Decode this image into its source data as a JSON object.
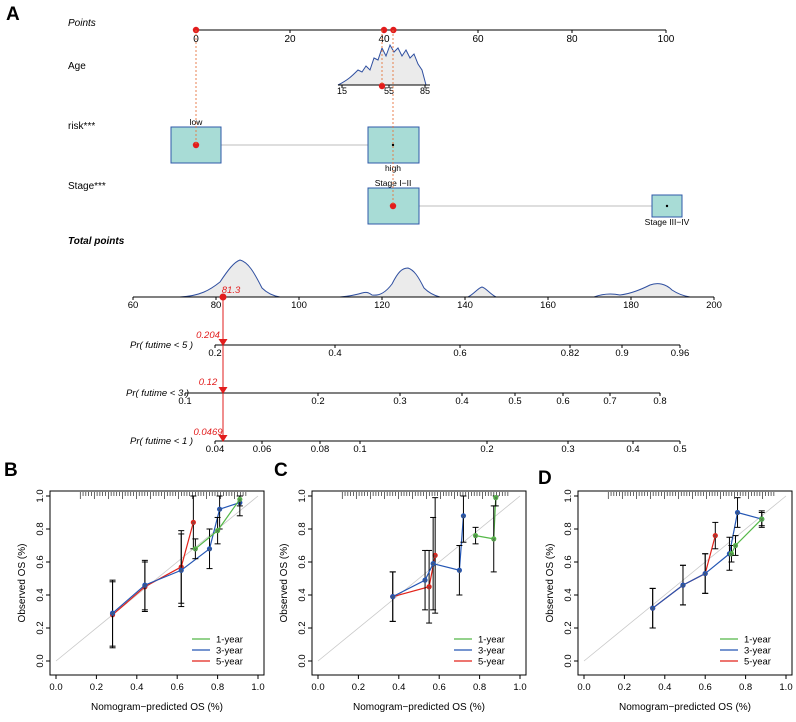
{
  "panel_letters": [
    "A",
    "B",
    "C",
    "D"
  ],
  "colors": {
    "box_fill": "#a8dcd6",
    "box_stroke": "#2f5aa8",
    "density_line": "#2f4fa0",
    "density_fill": "#ebebeb",
    "point_red": "#e21d1d",
    "guide": "#e6753e",
    "red_text": "#e21d1d",
    "one_year": "#55b848",
    "three_year": "#2456b4",
    "five_year": "#e2231a"
  },
  "nomogram": {
    "points_label": "Points",
    "points_axis": {
      "min": 0,
      "max": 100,
      "ticks": [
        0,
        20,
        40,
        60,
        80,
        100
      ],
      "selected": [
        0,
        40,
        42
      ]
    },
    "age": {
      "label": "Age",
      "ticks": [
        15,
        55,
        85
      ],
      "selected_value": 55,
      "points": 40
    },
    "risk": {
      "label": "risk***",
      "levels": [
        "low",
        "high"
      ],
      "selected": "low",
      "points": 0
    },
    "stage": {
      "label": "Stage***",
      "levels": [
        "Stage I−II",
        "Stage III−IV"
      ],
      "selected": "Stage I−II",
      "points": 42
    },
    "total_label": "Total points",
    "total_axis": {
      "min": 60,
      "max": 200,
      "ticks": [
        60,
        80,
        100,
        120,
        140,
        160,
        180,
        200
      ]
    },
    "total_value": "81.3",
    "probabilities": [
      {
        "label": "Pr( futime < 5 )",
        "value": "0.204",
        "ticks": [
          "0.2",
          "0.4",
          "0.6",
          "0.82",
          "0.9",
          "0.96"
        ]
      },
      {
        "label": "Pr( futime < 3 )",
        "value": "0.12",
        "ticks": [
          "0.1",
          "0.2",
          "0.3",
          "0.4",
          "0.5",
          "0.6",
          "0.7",
          "0.8"
        ]
      },
      {
        "label": "Pr( futime < 1 )",
        "value": "0.0469",
        "ticks": [
          "0.04",
          "0.06",
          "0.08",
          "0.1",
          "0.2",
          "0.3",
          "0.4",
          "0.5"
        ]
      }
    ]
  },
  "chart_data": [
    {
      "type": "line",
      "panel": "B",
      "title": "",
      "xlabel": "Nomogram−predicted OS (%)",
      "ylabel": "Observed OS (%)",
      "xlim": [
        0,
        1
      ],
      "ylim": [
        0,
        1
      ],
      "xticks": [
        "0.0",
        "0.2",
        "0.4",
        "0.6",
        "0.8",
        "1.0"
      ],
      "yticks": [
        "0.0",
        "0.2",
        "0.4",
        "0.6",
        "0.8",
        "1.0"
      ],
      "series": [
        {
          "name": "1-year",
          "x": [
            0.69,
            0.8,
            0.91
          ],
          "y": [
            0.68,
            0.79,
            0.98
          ],
          "err": [
            0.06,
            0.08,
            0.04
          ]
        },
        {
          "name": "3-year",
          "x": [
            0.28,
            0.44,
            0.62,
            0.76,
            0.81,
            0.91
          ],
          "y": [
            0.29,
            0.46,
            0.55,
            0.68,
            0.92,
            0.96
          ],
          "err": [
            0.2,
            0.15,
            0.22,
            0.12,
            0.12,
            0.08
          ]
        },
        {
          "name": "5-year",
          "x": [
            0.28,
            0.44,
            0.62,
            0.68
          ],
          "y": [
            0.28,
            0.45,
            0.57,
            0.84
          ],
          "err": [
            0.2,
            0.15,
            0.22,
            0.16
          ]
        }
      ]
    },
    {
      "type": "line",
      "panel": "C",
      "title": "",
      "xlabel": "Nomogram−predicted OS (%)",
      "ylabel": "Observed OS (%)",
      "xlim": [
        0,
        1
      ],
      "ylim": [
        0,
        1
      ],
      "xticks": [
        "0.0",
        "0.2",
        "0.4",
        "0.6",
        "0.8",
        "1.0"
      ],
      "yticks": [
        "0.0",
        "0.2",
        "0.4",
        "0.6",
        "0.8",
        "1.0"
      ],
      "series": [
        {
          "name": "1-year",
          "x": [
            0.78,
            0.87,
            0.88
          ],
          "y": [
            0.76,
            0.74,
            0.99
          ],
          "err": [
            0.05,
            0.2,
            0.05
          ]
        },
        {
          "name": "3-year",
          "x": [
            0.37,
            0.53,
            0.57,
            0.7,
            0.72
          ],
          "y": [
            0.39,
            0.49,
            0.59,
            0.55,
            0.88
          ],
          "err": [
            0.15,
            0.18,
            0.28,
            0.15,
            0.16
          ]
        },
        {
          "name": "5-year",
          "x": [
            0.37,
            0.55,
            0.58
          ],
          "y": [
            0.39,
            0.45,
            0.64
          ],
          "err": [
            0.15,
            0.22,
            0.35
          ]
        }
      ]
    },
    {
      "type": "line",
      "panel": "D",
      "title": "",
      "xlabel": "Nomogram−predicted OS (%)",
      "ylabel": "Observed OS (%)",
      "xlim": [
        0,
        1
      ],
      "ylim": [
        0,
        1
      ],
      "xticks": [
        "0.0",
        "0.2",
        "0.4",
        "0.6",
        "0.8",
        "1.0"
      ],
      "yticks": [
        "0.0",
        "0.2",
        "0.4",
        "0.6",
        "0.8",
        "1.0"
      ],
      "series": [
        {
          "name": "1-year",
          "x": [
            0.73,
            0.75,
            0.88
          ],
          "y": [
            0.65,
            0.7,
            0.86
          ],
          "err": [
            0.05,
            0.06,
            0.04
          ]
        },
        {
          "name": "3-year",
          "x": [
            0.34,
            0.49,
            0.6,
            0.72,
            0.76,
            0.88
          ],
          "y": [
            0.32,
            0.46,
            0.53,
            0.65,
            0.9,
            0.86
          ],
          "err": [
            0.12,
            0.12,
            0.12,
            0.1,
            0.09,
            0.05
          ]
        },
        {
          "name": "5-year",
          "x": [
            0.34,
            0.49,
            0.6,
            0.65
          ],
          "y": [
            0.32,
            0.46,
            0.53,
            0.76
          ],
          "err": [
            0.12,
            0.12,
            0.12,
            0.08
          ]
        }
      ]
    }
  ]
}
